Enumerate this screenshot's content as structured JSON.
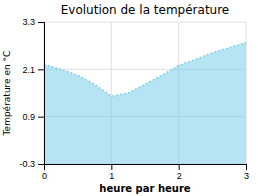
{
  "chart_data": {
    "type": "area",
    "title": "Evolution de la température",
    "xlabel": "heure par heure",
    "ylabel": "Température en °C",
    "x": [
      0,
      0.25,
      0.5,
      0.75,
      1.0,
      1.25,
      1.5,
      1.75,
      2.0,
      2.25,
      2.5,
      2.75,
      3.0
    ],
    "values": [
      2.22,
      2.1,
      1.95,
      1.72,
      1.42,
      1.5,
      1.72,
      1.95,
      2.2,
      2.35,
      2.52,
      2.65,
      2.78
    ],
    "xlim": [
      0,
      3
    ],
    "ylim": [
      -0.3,
      3.3
    ],
    "xticks": [
      0,
      1,
      2,
      3
    ],
    "yticks": [
      -0.3,
      0.9,
      2.1,
      3.3
    ],
    "grid": true,
    "color": "#6ecae8",
    "line_style": "dotted"
  }
}
